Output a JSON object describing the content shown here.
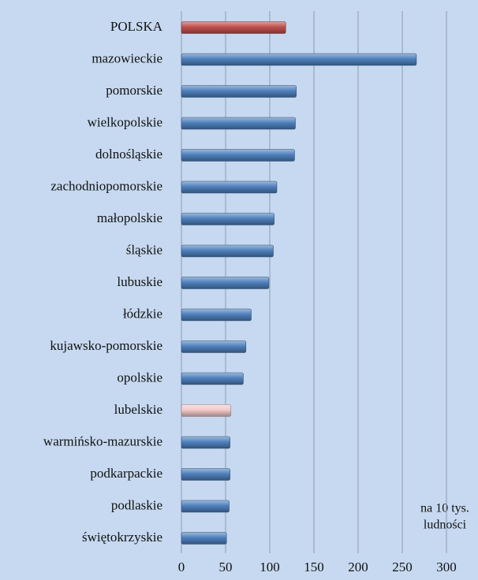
{
  "chart_data": {
    "type": "hbar",
    "categories": [
      "POLSKA",
      "mazowieckie",
      "pomorskie",
      "wielkopolskie",
      "dolnośląskie",
      "zachodniopomorskie",
      "małopolskie",
      "śląskie",
      "lubuskie",
      "łódzkie",
      "kujawsko-pomorskie",
      "opolskie",
      "lubelskie",
      "warmińsko-mazurskie",
      "podkarpackie",
      "podlaskie",
      "świętokrzyskie"
    ],
    "values": [
      118,
      266,
      130,
      129,
      128,
      108,
      105,
      104,
      99,
      79,
      73,
      70,
      56,
      55,
      55,
      54,
      51
    ],
    "colors": [
      "#c0504d",
      "#4f81bd",
      "#4f81bd",
      "#4f81bd",
      "#4f81bd",
      "#4f81bd",
      "#4f81bd",
      "#4f81bd",
      "#4f81bd",
      "#4f81bd",
      "#4f81bd",
      "#4f81bd",
      "#f2c9c9",
      "#4f81bd",
      "#4f81bd",
      "#4f81bd",
      "#4f81bd"
    ],
    "xlim": [
      0,
      300
    ],
    "xticks": [
      0,
      50,
      100,
      150,
      200,
      250,
      300
    ],
    "grid": true,
    "annotation": [
      "na 10 tys.",
      "ludności"
    ]
  }
}
